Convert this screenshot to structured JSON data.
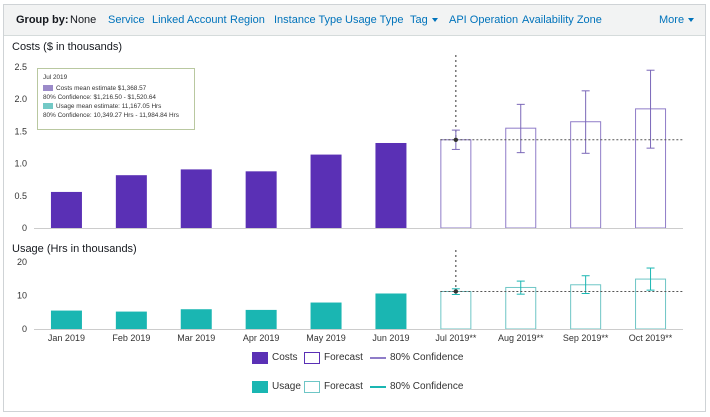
{
  "groupby": {
    "label": "Group by:",
    "current": "None",
    "items": [
      "Service",
      "Linked Account",
      "Region",
      "Instance Type",
      "Usage Type",
      "Tag",
      "API Operation",
      "Availability Zone"
    ],
    "more": "More"
  },
  "colors": {
    "costs": "#5a30b5",
    "usage": "#1ab6b2",
    "link": "#0073bb"
  },
  "tooltip": {
    "month": "Jul 2019",
    "costs_mean": "Costs mean estimate $1,368.57",
    "costs_conf": "80% Confidence: $1,216.50 - $1,520.64",
    "usage_mean": "Usage mean estimate: 11,167.05 Hrs",
    "usage_conf": "80% Confidence: 10,349.27 Hrs - 11,984.84 Hrs"
  },
  "legend": {
    "costs": "Costs",
    "costs_forecast": "Forecast",
    "costs_confidence": "80% Confidence",
    "usage": "Usage",
    "usage_forecast": "Forecast",
    "usage_confidence": "80% Confidence"
  },
  "chart_data": [
    {
      "type": "bar",
      "title": "Costs ($ in thousands)",
      "categories": [
        "Jan 2019",
        "Feb 2019",
        "Mar 2019",
        "Apr 2019",
        "May 2019",
        "Jun 2019",
        "Jul 2019**",
        "Aug 2019**",
        "Sep 2019**",
        "Oct 2019**"
      ],
      "yticks": [
        "0",
        "0.5",
        "1.0",
        "1.5",
        "2.0",
        "2.5"
      ],
      "ylim": [
        0,
        2.5
      ],
      "series": [
        {
          "name": "Costs",
          "values": [
            0.56,
            0.82,
            0.91,
            0.88,
            1.14,
            1.32,
            null,
            null,
            null,
            null
          ]
        },
        {
          "name": "Forecast",
          "values": [
            null,
            null,
            null,
            null,
            null,
            null,
            1.37,
            1.55,
            1.65,
            1.85
          ]
        },
        {
          "name": "80% Confidence low",
          "values": [
            null,
            null,
            null,
            null,
            null,
            null,
            1.22,
            1.17,
            1.16,
            1.24
          ]
        },
        {
          "name": "80% Confidence high",
          "values": [
            null,
            null,
            null,
            null,
            null,
            null,
            1.52,
            1.92,
            2.13,
            2.45
          ]
        }
      ],
      "reference_line": 1.37
    },
    {
      "type": "bar",
      "title": "Usage (Hrs in thousands)",
      "categories": [
        "Jan 2019",
        "Feb 2019",
        "Mar 2019",
        "Apr 2019",
        "May 2019",
        "Jun 2019",
        "Jul 2019**",
        "Aug 2019**",
        "Sep 2019**",
        "Oct 2019**"
      ],
      "yticks": [
        "0",
        "10",
        "20"
      ],
      "ylim": [
        0,
        20
      ],
      "series": [
        {
          "name": "Usage",
          "values": [
            5.5,
            5.2,
            5.9,
            5.7,
            7.9,
            10.6,
            null,
            null,
            null,
            null
          ]
        },
        {
          "name": "Forecast",
          "values": [
            null,
            null,
            null,
            null,
            null,
            null,
            11.2,
            12.4,
            13.2,
            14.9
          ]
        },
        {
          "name": "80% Confidence low",
          "values": [
            null,
            null,
            null,
            null,
            null,
            null,
            10.3,
            10.4,
            10.6,
            11.6
          ]
        },
        {
          "name": "80% Confidence high",
          "values": [
            null,
            null,
            null,
            null,
            null,
            null,
            12.0,
            14.3,
            15.9,
            18.2
          ]
        }
      ],
      "reference_line": 11.2
    }
  ]
}
